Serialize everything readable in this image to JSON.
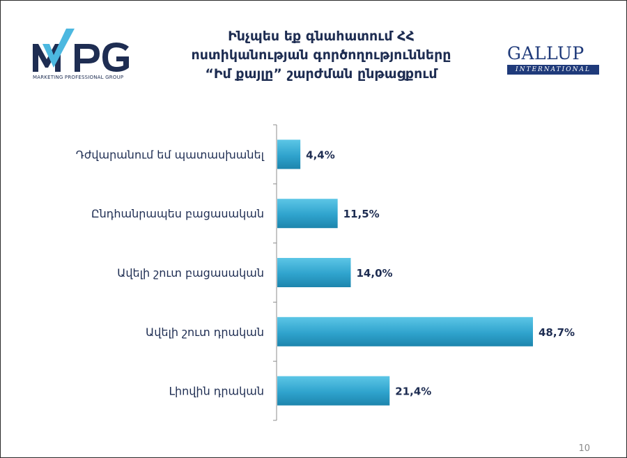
{
  "header": {
    "title_lines": [
      "Ինչպես եք գնահատում ՀՀ",
      "ոստիկանության գործողությունները",
      "“Իմ քայլը” շարժման ընթացքում"
    ],
    "mpg_logo": {
      "text": "MPG",
      "subtitle": "MARKETING PROFESSIONAL GROUP"
    },
    "gallup_logo": {
      "text": "GALLUP",
      "subtitle": "INTERNATIONAL"
    }
  },
  "page_number": "10",
  "colors": {
    "bar": "#2a9cc5",
    "bar_light": "#5cc6e6",
    "text": "#1e2d52",
    "axis": "#8c8c8c"
  },
  "chart_data": {
    "type": "bar",
    "orientation": "horizontal",
    "categories": [
      "Դժվարանում եմ պատասխանել",
      "Ընդհանրապես բացասական",
      "Ավելի շուտ բացասական",
      "Ավելի շուտ դրական",
      "Լիովին դրական"
    ],
    "values": [
      4.4,
      11.5,
      14.0,
      48.7,
      21.4
    ],
    "data_labels": [
      "4,4%",
      "11,5%",
      "14,0%",
      "48,7%",
      "21,4%"
    ],
    "xlim": [
      0,
      50
    ],
    "grid": false,
    "legend": "none"
  }
}
